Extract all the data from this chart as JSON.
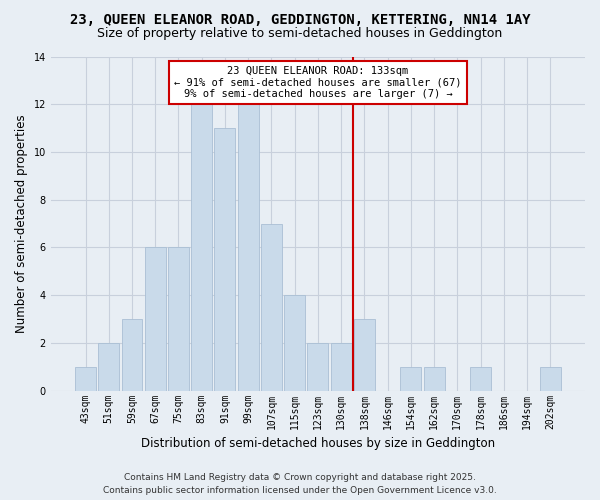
{
  "title1": "23, QUEEN ELEANOR ROAD, GEDDINGTON, KETTERING, NN14 1AY",
  "title2": "Size of property relative to semi-detached houses in Geddington",
  "xlabel": "Distribution of semi-detached houses by size in Geddington",
  "ylabel": "Number of semi-detached properties",
  "bar_color": "#c9daea",
  "bar_edgecolor": "#aabfd4",
  "categories": [
    "43sqm",
    "51sqm",
    "59sqm",
    "67sqm",
    "75sqm",
    "83sqm",
    "91sqm",
    "99sqm",
    "107sqm",
    "115sqm",
    "123sqm",
    "130sqm",
    "138sqm",
    "146sqm",
    "154sqm",
    "162sqm",
    "170sqm",
    "178sqm",
    "186sqm",
    "194sqm",
    "202sqm"
  ],
  "values": [
    1,
    2,
    3,
    6,
    6,
    12,
    11,
    12,
    7,
    4,
    2,
    2,
    3,
    0,
    1,
    1,
    0,
    1,
    0,
    0,
    1
  ],
  "ylim": [
    0,
    14
  ],
  "yticks": [
    0,
    2,
    4,
    6,
    8,
    10,
    12,
    14
  ],
  "vline_x": 11.5,
  "vline_color": "#cc0000",
  "annotation_title": "23 QUEEN ELEANOR ROAD: 133sqm",
  "annotation_line1": "← 91% of semi-detached houses are smaller (67)",
  "annotation_line2": "9% of semi-detached houses are larger (7) →",
  "annotation_box_color": "#cc0000",
  "footer1": "Contains HM Land Registry data © Crown copyright and database right 2025.",
  "footer2": "Contains public sector information licensed under the Open Government Licence v3.0.",
  "bg_color": "#e8eef4",
  "grid_color": "#c8d0dc",
  "title1_fontsize": 10,
  "title2_fontsize": 9,
  "tick_fontsize": 7,
  "ylabel_fontsize": 8.5,
  "xlabel_fontsize": 8.5,
  "footer_fontsize": 6.5,
  "ann_fontsize": 7.5
}
